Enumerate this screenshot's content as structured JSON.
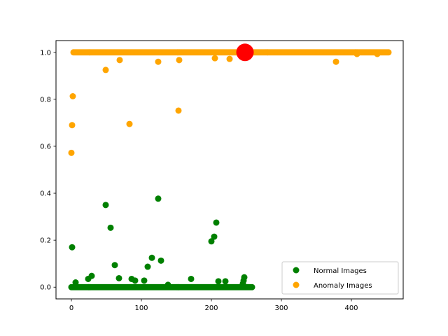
{
  "chart_data": {
    "type": "scatter",
    "title": "",
    "xlabel": "",
    "ylabel": "",
    "xlim": [
      -22,
      474
    ],
    "ylim": [
      -0.05,
      1.05
    ],
    "x_ticks": [
      0,
      100,
      200,
      300,
      400
    ],
    "y_ticks": [
      0.0,
      0.2,
      0.4,
      0.6,
      0.8,
      1.0
    ],
    "x_tick_labels": [
      "0",
      "100",
      "200",
      "300",
      "400"
    ],
    "y_tick_labels": [
      "0.0",
      "0.2",
      "0.4",
      "0.6",
      "0.8",
      "1.0"
    ],
    "grid": false,
    "legend_position": "lower-right",
    "legend": [
      {
        "label": "Normal Images",
        "color": "#008000"
      },
      {
        "label": "Anomaly Images",
        "color": "#ffa500"
      }
    ],
    "series": [
      {
        "name": "Normal Images",
        "color": "#008000",
        "baseline": {
          "x_start": 0,
          "x_end": 259,
          "step": 2,
          "y": 0.0
        },
        "points": [
          [
            1,
            0.17
          ],
          [
            6,
            0.02
          ],
          [
            24,
            0.035
          ],
          [
            29,
            0.048
          ],
          [
            49,
            0.35
          ],
          [
            56,
            0.253
          ],
          [
            62,
            0.094
          ],
          [
            68,
            0.038
          ],
          [
            86,
            0.035
          ],
          [
            91,
            0.028
          ],
          [
            104,
            0.028
          ],
          [
            109,
            0.087
          ],
          [
            115,
            0.125
          ],
          [
            124,
            0.377
          ],
          [
            128,
            0.113
          ],
          [
            138,
            0.01
          ],
          [
            171,
            0.035
          ],
          [
            200,
            0.195
          ],
          [
            204,
            0.215
          ],
          [
            207,
            0.275
          ],
          [
            210,
            0.025
          ],
          [
            220,
            0.025
          ],
          [
            245,
            0.015
          ],
          [
            246,
            0.028
          ],
          [
            247,
            0.042
          ]
        ]
      },
      {
        "name": "Anomaly Images",
        "color": "#ffa500",
        "baseline": {
          "x_start": 3,
          "x_end": 453,
          "step": 2,
          "y": 1.0
        },
        "points": [
          [
            0,
            0.572
          ],
          [
            1,
            0.69
          ],
          [
            2,
            0.813
          ],
          [
            49,
            0.925
          ],
          [
            69,
            0.967
          ],
          [
            83,
            0.695
          ],
          [
            124,
            0.96
          ],
          [
            153,
            0.752
          ],
          [
            154,
            0.967
          ],
          [
            205,
            0.975
          ],
          [
            226,
            0.972
          ],
          [
            378,
            0.96
          ],
          [
            408,
            0.993
          ],
          [
            437,
            0.993
          ]
        ]
      }
    ],
    "highlight": {
      "x": 248,
      "y": 1.0,
      "color": "#ff0000"
    }
  }
}
